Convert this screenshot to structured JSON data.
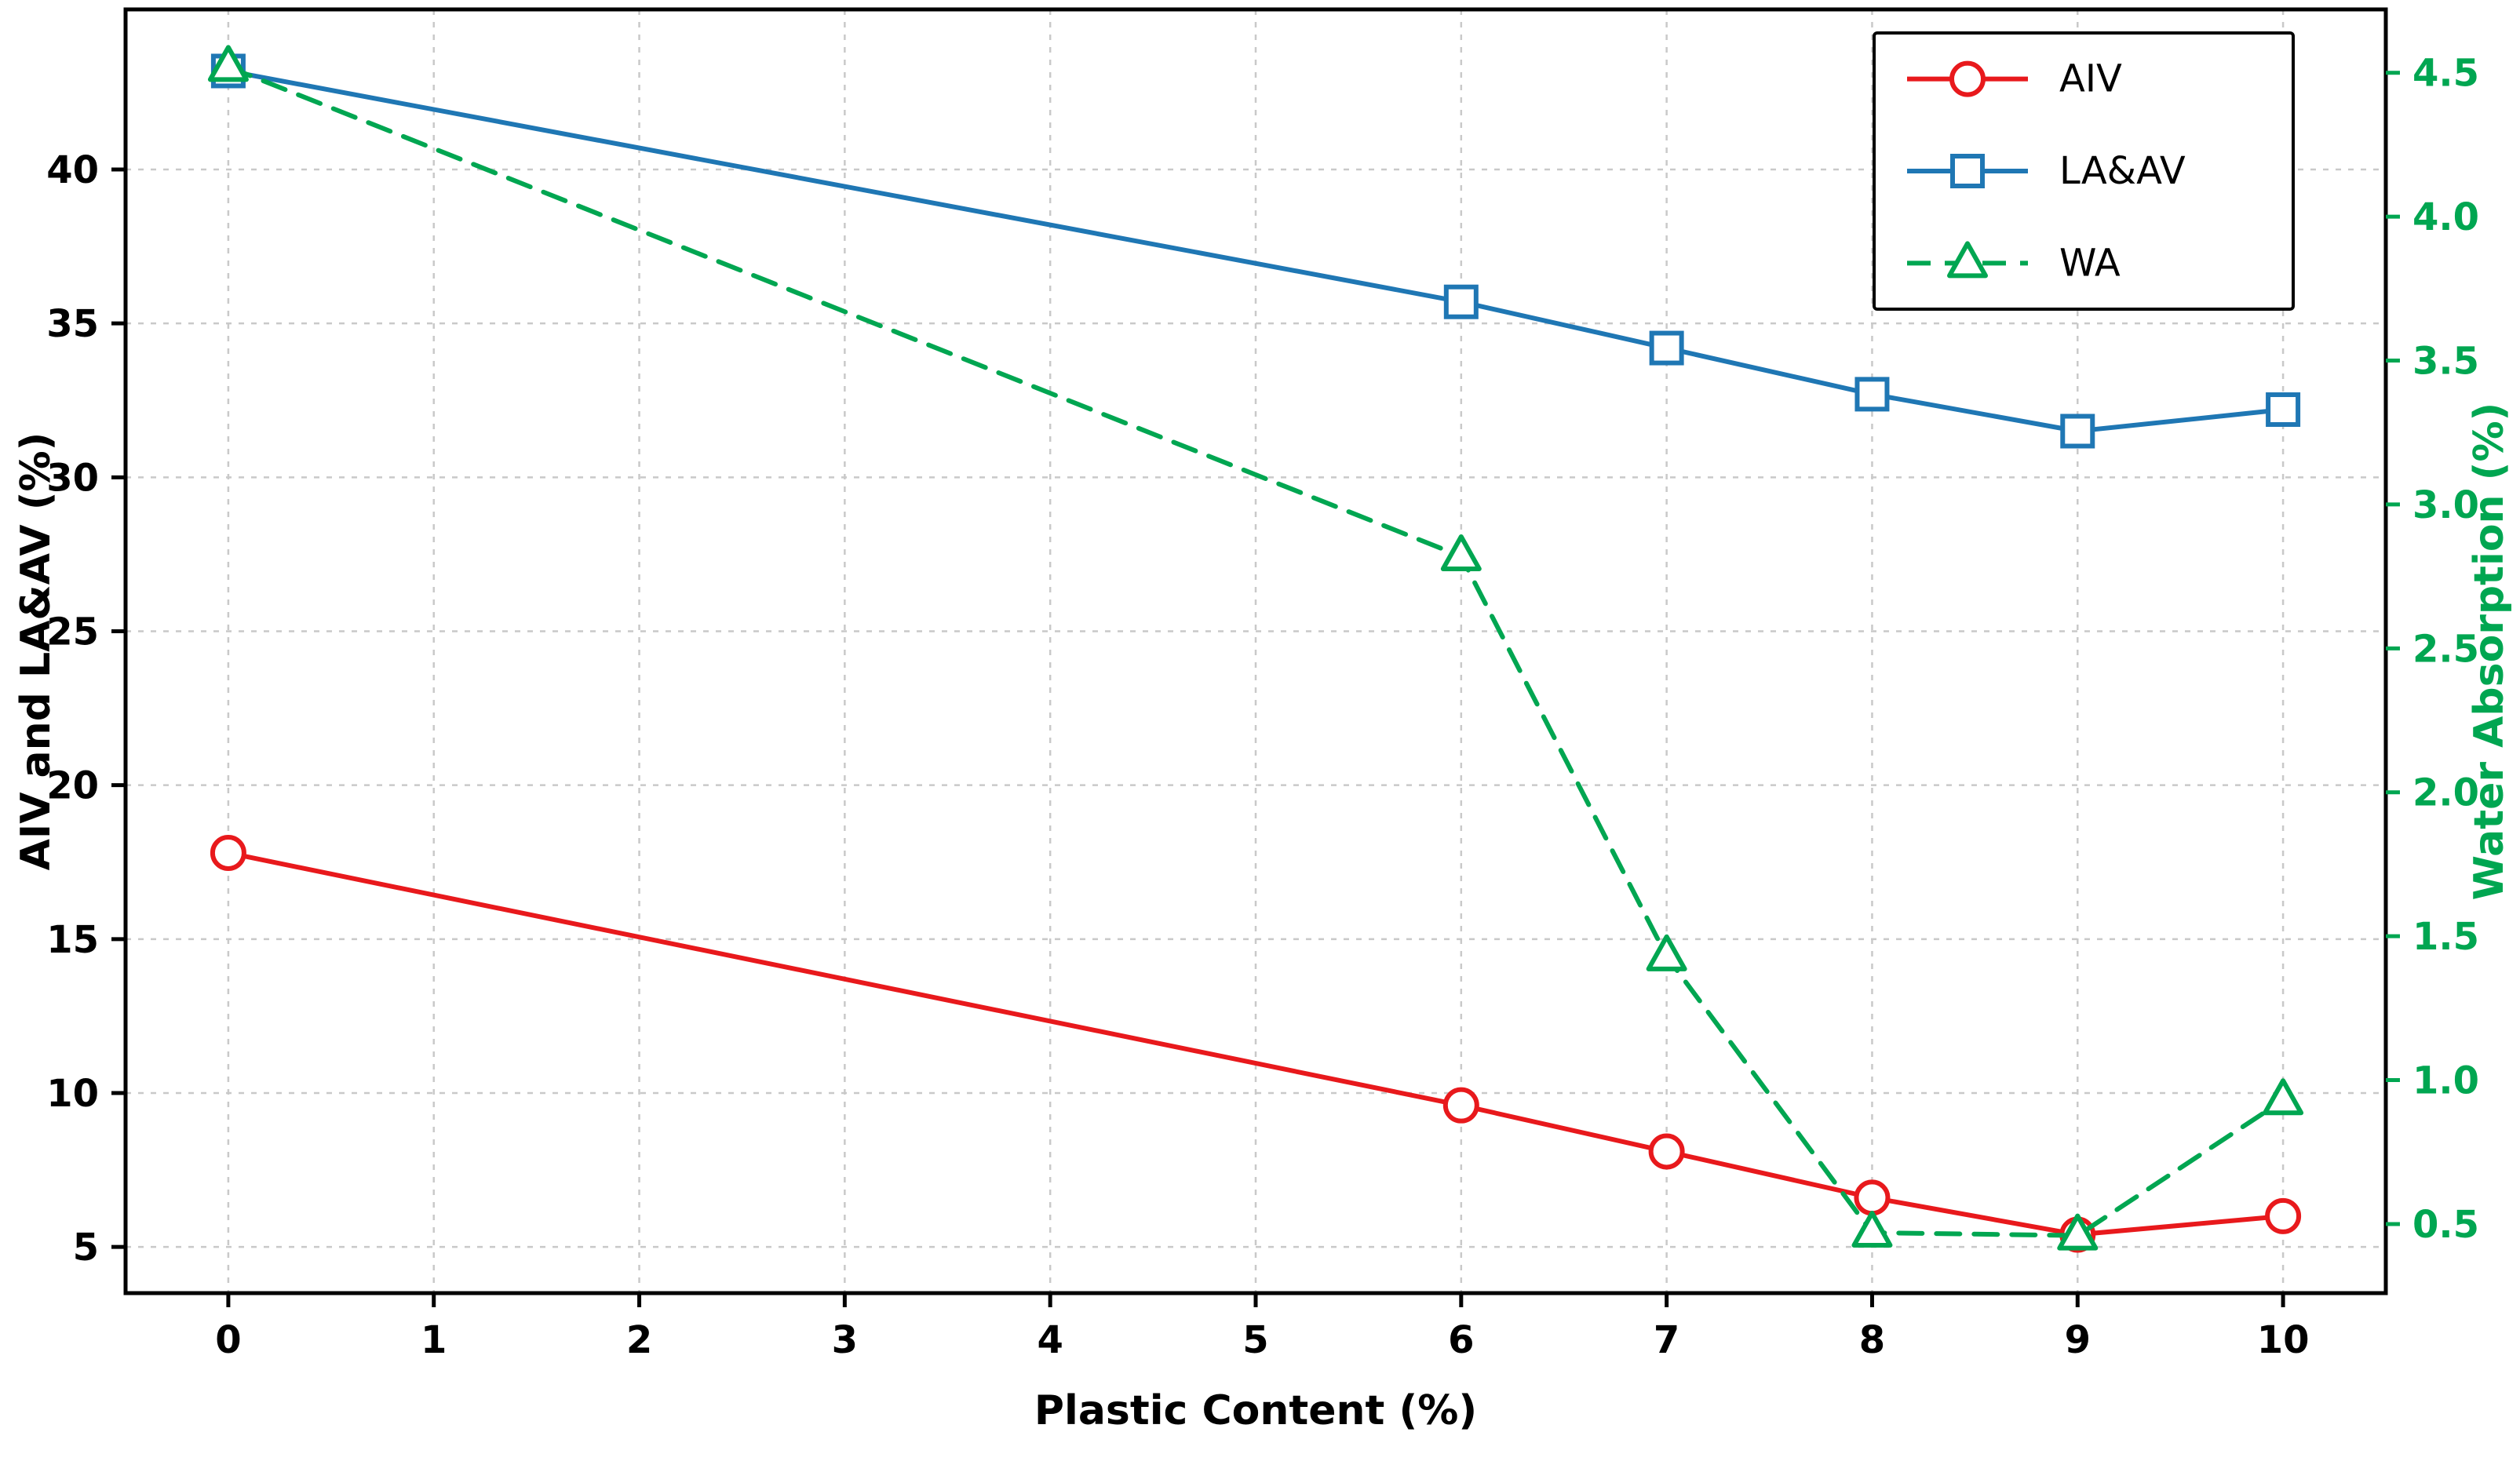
{
  "chart_data": {
    "type": "line",
    "title": "",
    "xlabel": "Plastic Content (%)",
    "ylabel_left": "AIV and LA&AV (%)",
    "ylabel_right": "Water Absorption (%)",
    "x_ticks": [
      0,
      1,
      2,
      3,
      4,
      5,
      6,
      7,
      8,
      9,
      10
    ],
    "y_ticks_left": [
      5,
      10,
      15,
      20,
      25,
      30,
      35,
      40
    ],
    "y_ticks_right": [
      0.5,
      1.0,
      1.5,
      2.0,
      2.5,
      3.0,
      3.5,
      4.0,
      4.5
    ],
    "xlim": [
      -0.5,
      10.5
    ],
    "ylim_left": [
      3.5,
      45.2
    ],
    "ylim_right": [
      0.26,
      4.72
    ],
    "grid": true,
    "grid_color": "#c9c9c9",
    "frame_color": "#000000",
    "right_axis_color": "#00a651",
    "background": "#ffffff",
    "legend_position": "top-right",
    "series": [
      {
        "name": "AIV",
        "axis": "left",
        "color": "#e8191c",
        "marker": "circle",
        "dash": "solid",
        "x": [
          0,
          6,
          7,
          8,
          9,
          10
        ],
        "y": [
          17.8,
          9.6,
          8.1,
          6.6,
          5.4,
          6.0
        ]
      },
      {
        "name": "LA&AV",
        "axis": "left",
        "color": "#1f77b4",
        "marker": "square",
        "dash": "solid",
        "x": [
          0,
          6,
          7,
          8,
          9,
          10
        ],
        "y": [
          43.2,
          35.7,
          34.2,
          32.7,
          31.5,
          32.2
        ]
      },
      {
        "name": "WA",
        "axis": "right",
        "color": "#00a651",
        "marker": "triangle",
        "dash": "dashed",
        "x": [
          0,
          6,
          7,
          8,
          9,
          10
        ],
        "y": [
          4.52,
          2.82,
          1.43,
          0.47,
          0.46,
          0.93
        ]
      }
    ]
  }
}
